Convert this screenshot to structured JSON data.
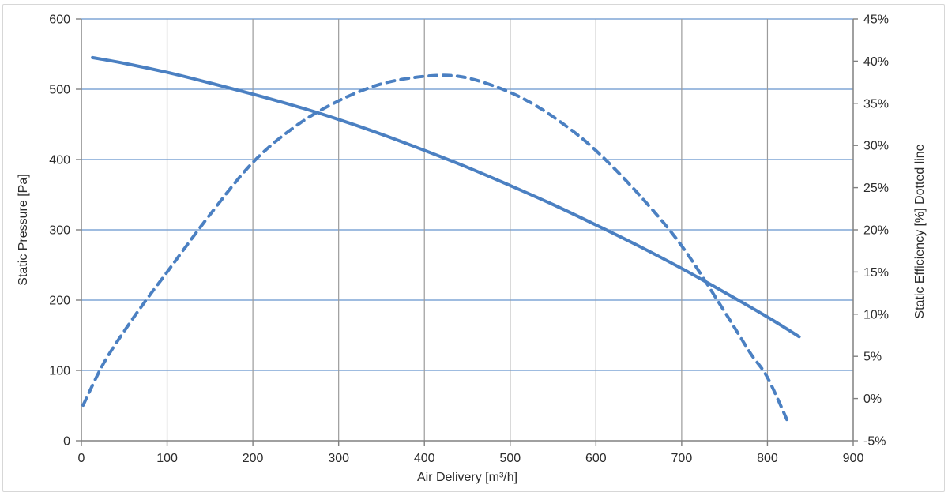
{
  "chart_data": {
    "type": "line",
    "title": "",
    "xlabel": "Air Delivery [m³/h]",
    "ylabel_left": "Static Pressure [Pa]",
    "ylabel_right": "Static Efficiency [%] Dotted line",
    "x_range": [
      0,
      900
    ],
    "x_tick_step": 100,
    "y_left_range": [
      0,
      600
    ],
    "y_left_tick_step": 100,
    "y_right_range": [
      -5,
      45
    ],
    "y_right_tick_step": 5,
    "grid": {
      "horizontal": true,
      "vertical": true
    },
    "legend_position": "none",
    "ticks": {
      "x_labels": [
        "0",
        "100",
        "200",
        "300",
        "400",
        "500",
        "600",
        "700",
        "800",
        "900"
      ],
      "y_left_labels": [
        "0",
        "100",
        "200",
        "300",
        "400",
        "500",
        "600"
      ],
      "y_right_labels": [
        "-5%",
        "0%",
        "5%",
        "10%",
        "15%",
        "20%",
        "25%",
        "30%",
        "35%",
        "40%",
        "45%"
      ]
    },
    "series": [
      {
        "name": "Static Pressure",
        "axis": "left",
        "style": "solid",
        "color": "#4b80c2",
        "points": [
          [
            13,
            545
          ],
          [
            50,
            537
          ],
          [
            100,
            524
          ],
          [
            150,
            509
          ],
          [
            200,
            493
          ],
          [
            250,
            476
          ],
          [
            300,
            457
          ],
          [
            350,
            436
          ],
          [
            400,
            413
          ],
          [
            450,
            389
          ],
          [
            500,
            363
          ],
          [
            550,
            336
          ],
          [
            600,
            307
          ],
          [
            650,
            277
          ],
          [
            700,
            245
          ],
          [
            750,
            211
          ],
          [
            800,
            176
          ],
          [
            837,
            148
          ]
        ]
      },
      {
        "name": "Static Efficiency",
        "axis": "right",
        "style": "dashed",
        "color": "#4b80c2",
        "points": [
          [
            2,
            -0.8
          ],
          [
            25,
            4
          ],
          [
            50,
            8
          ],
          [
            75,
            11.6
          ],
          [
            100,
            15
          ],
          [
            150,
            21.8
          ],
          [
            200,
            28
          ],
          [
            250,
            32.3
          ],
          [
            300,
            35.3
          ],
          [
            350,
            37.3
          ],
          [
            400,
            38.2
          ],
          [
            440,
            38.2
          ],
          [
            480,
            37.1
          ],
          [
            520,
            35.3
          ],
          [
            560,
            32.7
          ],
          [
            600,
            29.4
          ],
          [
            650,
            24.2
          ],
          [
            700,
            18.1
          ],
          [
            750,
            10.3
          ],
          [
            780,
            5.4
          ],
          [
            800,
            2.5
          ],
          [
            824,
            -2.8
          ]
        ]
      }
    ]
  },
  "style_colors": {
    "curve_blue": "#4b80c2",
    "h_gridline": "#6694ce",
    "v_gridline": "#9b9b9b",
    "axis_line": "#808080",
    "tick_text": "#2b2b2b",
    "chart_border": "#d7d7d7",
    "background": "#ffffff"
  }
}
